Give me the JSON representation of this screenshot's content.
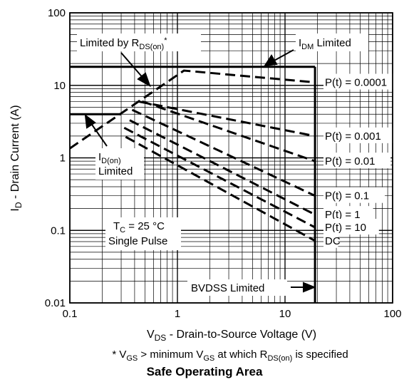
{
  "chart_data": {
    "type": "line",
    "title": "Safe Operating Area",
    "xlabel": "V_DS - Drain-to-Source Voltage (V)",
    "ylabel": "I_D - Drain Current (A)",
    "x_scale": "log",
    "y_scale": "log",
    "xlim": [
      0.1,
      100
    ],
    "ylim": [
      0.01,
      100
    ],
    "grid": true,
    "x_ticks": [
      "0.1",
      "1",
      "10",
      "100"
    ],
    "y_ticks": [
      "0.01",
      "0.1",
      "1",
      "10",
      "100"
    ],
    "series": [
      {
        "name": "P(t) = 0.0001",
        "style": "dashed",
        "points": [
          [
            0.1,
            1.35
          ],
          [
            1.15,
            16
          ],
          [
            19,
            11
          ]
        ]
      },
      {
        "name": "P(t) = 0.001",
        "style": "dashed",
        "points": [
          [
            0.43,
            6
          ],
          [
            19,
            2
          ]
        ]
      },
      {
        "name": "P(t) = 0.01",
        "style": "dashed",
        "points": [
          [
            0.47,
            6
          ],
          [
            19,
            0.9
          ]
        ]
      },
      {
        "name": "P(t) = 0.1",
        "style": "dashed",
        "points": [
          [
            0.38,
            4.6
          ],
          [
            19,
            0.3
          ]
        ]
      },
      {
        "name": "P(t) = 1",
        "style": "dashed",
        "points": [
          [
            0.36,
            3.3
          ],
          [
            19,
            0.165
          ]
        ]
      },
      {
        "name": "P(t) = 10",
        "style": "dashed",
        "points": [
          [
            0.32,
            2.6
          ],
          [
            19,
            0.11
          ]
        ]
      },
      {
        "name": "DC",
        "style": "dashed",
        "points": [
          [
            0.33,
            1.95
          ],
          [
            19,
            0.072
          ]
        ]
      },
      {
        "name": "I_DM Limited",
        "style": "solid",
        "points": [
          [
            0.1,
            18
          ],
          [
            19,
            18
          ]
        ]
      },
      {
        "name": "I_D(on) Limited",
        "style": "solid",
        "points": [
          [
            0.1,
            4
          ],
          [
            0.3,
            4
          ]
        ]
      },
      {
        "name": "BVDSS Limited",
        "style": "solid",
        "points": [
          [
            19,
            0.01
          ],
          [
            19,
            18
          ]
        ]
      }
    ],
    "annotations": [
      {
        "text": "Limited by R_DS(on)*",
        "main": "Limited by R",
        "sub": "DS(on)",
        "sup": "*"
      },
      {
        "text": "I_DM Limited",
        "main": "I",
        "sub": "DM",
        "tail": " Limited"
      },
      {
        "text": "I_D(on) Limited",
        "line1_main": "I",
        "line1_sub": "D(on)",
        "line2": "Limited"
      },
      {
        "text": "T_C = 25 °C Single Pulse",
        "line1_main": "T",
        "line1_sub": "C",
        "line1_tail": " = 25 °C",
        "line2": "Single Pulse"
      },
      {
        "text": "BVDSS  Limited",
        "line": "BVDSS  Limited"
      }
    ],
    "footnote": "* V_GS > minimum V_GS at which R_DS(on) is specified"
  },
  "labels": {
    "x_main_a": "V",
    "x_sub": "DS",
    "x_main_b": " - Drain-to-Source Voltage (V)",
    "y_main_a": "I",
    "y_sub": "D",
    "y_main_b": " - Drain Current (A)",
    "foot_a": "* V",
    "foot_sub1": "GS",
    "foot_b": " > minimum V",
    "foot_sub2": "GS",
    "foot_c": " at which R",
    "foot_sub3": "DS(on)",
    "foot_d": " is specified",
    "caption": "Safe Operating Area"
  }
}
